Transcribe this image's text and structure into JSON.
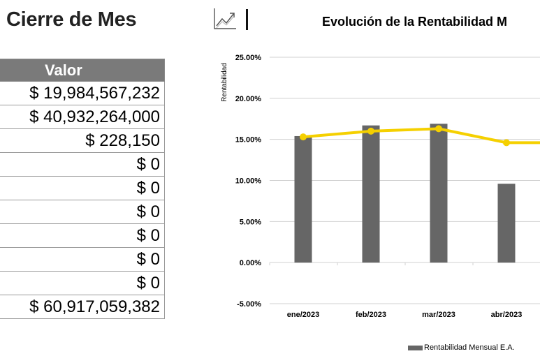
{
  "header": {
    "title": "Cierre de Mes"
  },
  "table": {
    "column_header": "Valor",
    "rows": [
      "$ 19,984,567,232",
      "$ 40,932,264,000",
      "$ 228,150",
      "$ 0",
      "$ 0",
      "$ 0",
      "$ 0",
      "$ 0",
      "$ 0",
      "$ 60,917,059,382"
    ]
  },
  "icons": {
    "chart": "line-chart-icon"
  },
  "chart_data": {
    "type": "bar",
    "title": "Evolución de la Rentabilidad M",
    "ylabel": "Rentabilidad",
    "xlabel": "",
    "categories": [
      "ene/2023",
      "feb/2023",
      "mar/2023",
      "abr/2023"
    ],
    "yticks": [
      "25.00%",
      "20.00%",
      "15.00%",
      "10.00%",
      "5.00%",
      "0.00%",
      "-5.00%"
    ],
    "ylim": [
      -5,
      25
    ],
    "grid": true,
    "series": [
      {
        "name": "Rentabilidad Mensual E.A.",
        "kind": "bar",
        "color": "#666666",
        "values": [
          15.4,
          16.7,
          16.9,
          9.6
        ]
      },
      {
        "kind": "line",
        "color": "#f5d000",
        "values": [
          15.3,
          16.0,
          16.3,
          14.6
        ]
      }
    ],
    "legend": "bottom-right"
  }
}
